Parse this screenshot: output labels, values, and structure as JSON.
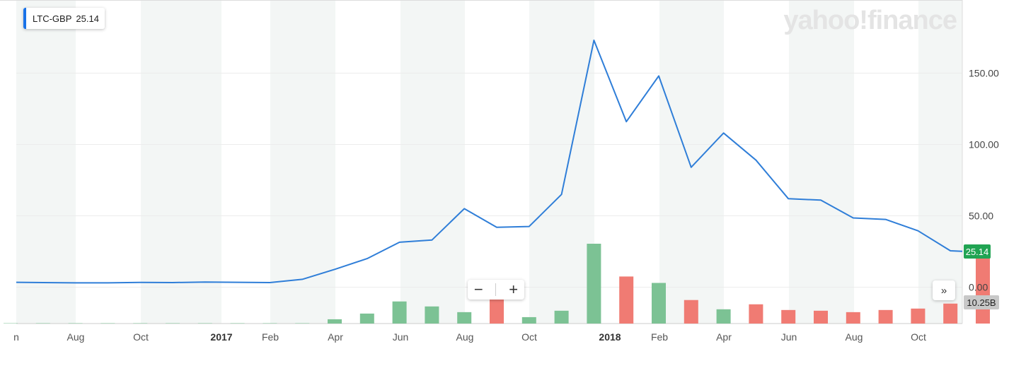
{
  "legend": {
    "symbol": "LTC-GBP",
    "value": "25.14"
  },
  "watermark": "yahoo!finance",
  "controls": {
    "zoom_out": "−",
    "zoom_in": "+",
    "forward": "»"
  },
  "price_tag": "25.14",
  "volume_tag": "10.25B",
  "colors": {
    "line": "#2f7ed8",
    "up_volume": "#7cc294",
    "down_volume": "#f07b73",
    "band": "#f3f6f5",
    "price_tag": "#21a453"
  },
  "chart_data": {
    "type": "line",
    "title": "",
    "ylim": [
      -10,
      185
    ],
    "y_ticks": [
      "150.00",
      "100.00",
      "50.00",
      "0.00"
    ],
    "y_tick_values": [
      150,
      100,
      50,
      0
    ],
    "x_labels": [
      "n",
      "Aug",
      "Oct",
      "2017",
      "Feb",
      "Apr",
      "Jun",
      "Aug",
      "Oct",
      "2018",
      "Feb",
      "Apr",
      "Jun",
      "Aug",
      "Oct"
    ],
    "x_label_bold": [
      false,
      false,
      false,
      true,
      false,
      false,
      false,
      false,
      false,
      true,
      false,
      false,
      false,
      false,
      false
    ],
    "series": [
      {
        "kind": "price",
        "x": [
          "2016-06",
          "2016-07",
          "2016-08",
          "2016-09",
          "2016-10",
          "2016-11",
          "2016-12",
          "2017-01",
          "2017-02",
          "2017-03",
          "2017-04",
          "2017-05",
          "2017-06",
          "2017-07",
          "2017-08",
          "2017-09",
          "2017-10",
          "2017-11",
          "2017-12",
          "2018-01",
          "2018-02",
          "2018-03",
          "2018-04",
          "2018-05",
          "2018-06",
          "2018-07",
          "2018-08",
          "2018-09",
          "2018-10",
          "2018-11",
          "2018-12"
        ],
        "values": [
          3.4,
          3.2,
          3.0,
          3.0,
          3.3,
          3.2,
          3.6,
          3.4,
          3.2,
          5.5,
          12.5,
          20.0,
          31.5,
          33.0,
          55.0,
          42.0,
          42.5,
          65.0,
          173.0,
          116.0,
          148.0,
          84.0,
          108.0,
          89.0,
          62.0,
          61.0,
          48.5,
          47.5,
          39.5,
          25.5,
          25.14
        ]
      },
      {
        "kind": "volume",
        "x": [
          "2016-06",
          "2016-07",
          "2016-08",
          "2016-09",
          "2016-10",
          "2016-11",
          "2016-12",
          "2017-01",
          "2017-02",
          "2017-03",
          "2017-04",
          "2017-05",
          "2017-06",
          "2017-07",
          "2017-08",
          "2017-09",
          "2017-10",
          "2017-11",
          "2017-12",
          "2018-01",
          "2018-02",
          "2018-03",
          "2018-04",
          "2018-05",
          "2018-06",
          "2018-07",
          "2018-08",
          "2018-09",
          "2018-10",
          "2018-11",
          "2018-12"
        ],
        "values": [
          0.01,
          0.01,
          0.01,
          0.01,
          0.01,
          0.01,
          0.02,
          0.02,
          0.03,
          0.05,
          0.6,
          1.4,
          3.1,
          2.4,
          1.6,
          3.4,
          0.9,
          1.8,
          11.2,
          6.6,
          5.7,
          3.3,
          2.0,
          2.7,
          1.9,
          1.8,
          1.6,
          1.9,
          2.1,
          2.8,
          10.25
        ],
        "direction": [
          "up",
          "up",
          "up",
          "up",
          "up",
          "up",
          "up",
          "up",
          "up",
          "up",
          "up",
          "up",
          "up",
          "up",
          "up",
          "down",
          "up",
          "up",
          "up",
          "down",
          "up",
          "down",
          "up",
          "down",
          "down",
          "down",
          "down",
          "down",
          "down",
          "down",
          "down"
        ]
      }
    ]
  }
}
